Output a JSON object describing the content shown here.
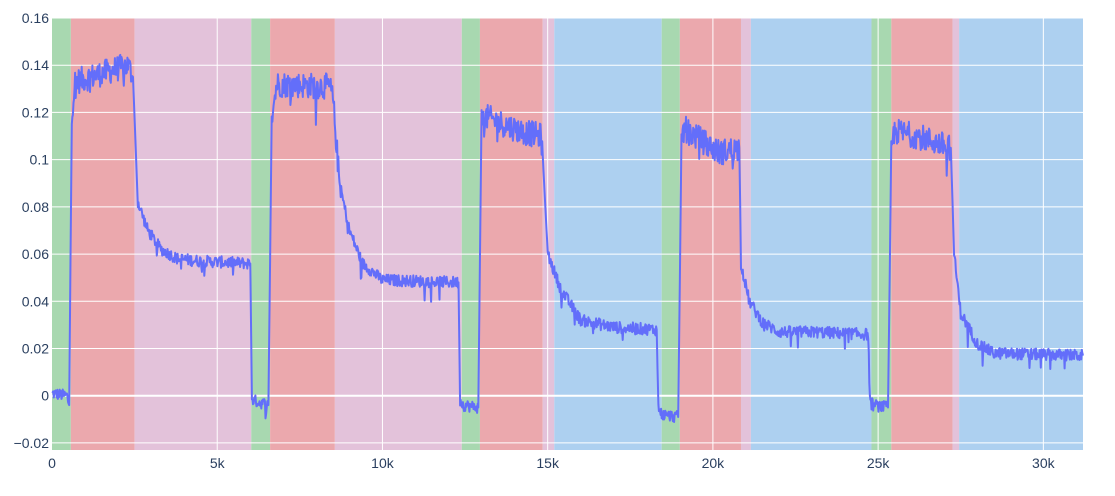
{
  "chart_data": {
    "type": "line",
    "title": "",
    "xlabel": "",
    "ylabel": "",
    "xlim": [
      0,
      31200
    ],
    "ylim": [
      -0.023,
      0.16
    ],
    "grid": true,
    "legend": "none",
    "x_ticks": [
      {
        "value": 0,
        "label": "0"
      },
      {
        "value": 5000,
        "label": "5k"
      },
      {
        "value": 10000,
        "label": "10k"
      },
      {
        "value": 15000,
        "label": "15k"
      },
      {
        "value": 20000,
        "label": "20k"
      },
      {
        "value": 25000,
        "label": "25k"
      },
      {
        "value": 30000,
        "label": "30k"
      }
    ],
    "y_ticks": [
      {
        "value": -0.02,
        "label": "−0.02"
      },
      {
        "value": 0,
        "label": "0"
      },
      {
        "value": 0.02,
        "label": "0.02"
      },
      {
        "value": 0.04,
        "label": "0.04"
      },
      {
        "value": 0.06,
        "label": "0.06"
      },
      {
        "value": 0.08,
        "label": "0.08"
      },
      {
        "value": 0.1,
        "label": "0.1"
      },
      {
        "value": 0.12,
        "label": "0.12"
      },
      {
        "value": 0.14,
        "label": "0.14"
      },
      {
        "value": 0.16,
        "label": "0.16"
      }
    ],
    "band_colors": {
      "green": "#a8d8b0",
      "red": "#eba8ad",
      "pink": "#e3c2da",
      "blue": "#add0f0"
    },
    "bands": [
      {
        "x0": 0,
        "x1": 570,
        "color": "green"
      },
      {
        "x0": 570,
        "x1": 2500,
        "color": "red"
      },
      {
        "x0": 2500,
        "x1": 6030,
        "color": "pink"
      },
      {
        "x0": 6030,
        "x1": 6600,
        "color": "green"
      },
      {
        "x0": 6600,
        "x1": 8560,
        "color": "red"
      },
      {
        "x0": 8560,
        "x1": 12400,
        "color": "pink"
      },
      {
        "x0": 12400,
        "x1": 12950,
        "color": "green"
      },
      {
        "x0": 12950,
        "x1": 14850,
        "color": "red"
      },
      {
        "x0": 14850,
        "x1": 15200,
        "color": "pink"
      },
      {
        "x0": 15200,
        "x1": 18450,
        "color": "blue"
      },
      {
        "x0": 18450,
        "x1": 19000,
        "color": "green"
      },
      {
        "x0": 19000,
        "x1": 20850,
        "color": "red"
      },
      {
        "x0": 20850,
        "x1": 21150,
        "color": "pink"
      },
      {
        "x0": 21150,
        "x1": 24800,
        "color": "blue"
      },
      {
        "x0": 24800,
        "x1": 25400,
        "color": "green"
      },
      {
        "x0": 25400,
        "x1": 27250,
        "color": "red"
      },
      {
        "x0": 27250,
        "x1": 27450,
        "color": "pink"
      },
      {
        "x0": 27450,
        "x1": 31200,
        "color": "blue"
      }
    ],
    "series": [
      {
        "color": "#636efa",
        "noise": 0.0025,
        "x": [
          0,
          450,
          520,
          600,
          700,
          2300,
          2450,
          2600,
          2900,
          3300,
          3800,
          4500,
          6000,
          6050,
          6100,
          6550,
          6650,
          6800,
          8400,
          8500,
          8700,
          9000,
          9400,
          10000,
          12300,
          12350,
          12450,
          12900,
          13000,
          13150,
          14200,
          14800,
          14850,
          15000,
          15400,
          16000,
          17000,
          18300,
          18350,
          18450,
          18950,
          19050,
          19150,
          20200,
          20800,
          20850,
          21100,
          21500,
          22000,
          23000,
          24700,
          24750,
          24850,
          25300,
          25400,
          25500,
          26200,
          27200,
          27300,
          27500,
          28000,
          28500,
          31200
        ],
        "y": [
          0.001,
          0.0,
          -0.004,
          0.12,
          0.133,
          0.14,
          0.135,
          0.082,
          0.07,
          0.062,
          0.058,
          0.057,
          0.056,
          -0.001,
          -0.002,
          -0.004,
          0.118,
          0.132,
          0.131,
          0.126,
          0.09,
          0.07,
          0.056,
          0.049,
          0.048,
          -0.002,
          -0.004,
          -0.005,
          0.117,
          0.118,
          0.112,
          0.11,
          0.102,
          0.06,
          0.045,
          0.032,
          0.029,
          0.028,
          -0.005,
          -0.008,
          -0.009,
          0.11,
          0.113,
          0.103,
          0.105,
          0.056,
          0.04,
          0.031,
          0.027,
          0.027,
          0.026,
          -0.002,
          -0.004,
          -0.005,
          0.105,
          0.112,
          0.11,
          0.105,
          0.06,
          0.035,
          0.022,
          0.018,
          0.017
        ]
      }
    ]
  }
}
